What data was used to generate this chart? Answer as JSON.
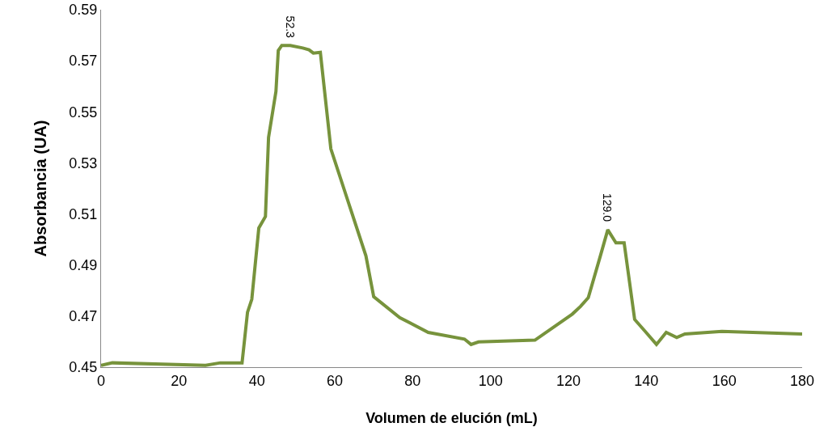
{
  "chart_data": {
    "type": "line",
    "xlabel": "Volumen de elución (mL)",
    "ylabel": "Absorbancia (UA)",
    "x": [
      0,
      2.9,
      26.8,
      30.6,
      36.2,
      37.6,
      38.7,
      40.5,
      42.2,
      43.0,
      44.9,
      45.5,
      46.4,
      48.6,
      51.8,
      53.4,
      54.5,
      56.3,
      59.0,
      68.0,
      70.0,
      76.7,
      84.0,
      93.3,
      95.0,
      96.9,
      111.4,
      121.0,
      123.1,
      125.1,
      128.2,
      130.1,
      132.2,
      134.3,
      137.0,
      139.7,
      142.6,
      145.1,
      147.8,
      149.9,
      159.4,
      180.0
    ],
    "series": [
      {
        "color": "#77933c",
        "values": [
          0.4507,
          0.4517,
          0.4507,
          0.4517,
          0.4517,
          0.4715,
          0.4766,
          0.5045,
          0.509,
          0.54,
          0.558,
          0.574,
          0.576,
          0.576,
          0.575,
          0.5743,
          0.573,
          0.5733,
          0.5355,
          0.4936,
          0.4776,
          0.4694,
          0.4636,
          0.461,
          0.4589,
          0.4599,
          0.4606,
          0.4708,
          0.4738,
          0.4772,
          0.4936,
          0.5038,
          0.4987,
          0.4987,
          0.4687,
          0.464,
          0.4589,
          0.4636,
          0.4616,
          0.463,
          0.464,
          0.463
        ]
      }
    ],
    "annotations": [
      {
        "text": "52.3",
        "x": 48.6,
        "y": 0.576
      },
      {
        "text": "129.0",
        "x": 130.1,
        "y": 0.5038
      }
    ],
    "xlim": [
      0,
      180
    ],
    "xticks": [
      0,
      20,
      40,
      60,
      80,
      100,
      120,
      140,
      160,
      180
    ],
    "ylim": [
      0.45,
      0.59
    ],
    "yticks": [
      0.45,
      0.47,
      0.49,
      0.51,
      0.53,
      0.55,
      0.57,
      0.59
    ],
    "grid": false,
    "marker": "none",
    "line_style": "solid"
  }
}
